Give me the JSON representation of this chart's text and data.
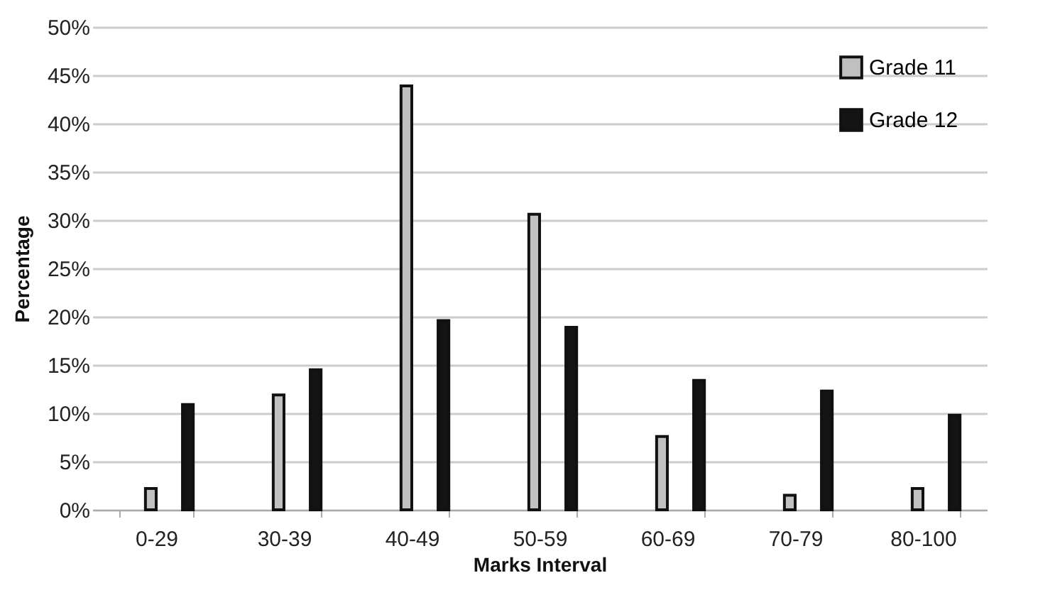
{
  "chart_data": {
    "type": "bar",
    "xlabel": "Marks Interval",
    "ylabel": "Percentage",
    "categories": [
      "0-29",
      "30-39",
      "40-49",
      "50-59",
      "60-69",
      "70-79",
      "80-100"
    ],
    "series": [
      {
        "name": "Grade 11",
        "color": "#c0c0c0",
        "values": [
          2.2,
          11.9,
          43.9,
          30.6,
          7.6,
          1.5,
          2.2
        ]
      },
      {
        "name": "Grade 12",
        "color": "#141414",
        "values": [
          10.9,
          14.5,
          19.6,
          18.9,
          13.4,
          12.3,
          9.8
        ]
      }
    ],
    "ylim": [
      0,
      50
    ],
    "yticks": [
      {
        "value": 0,
        "label": "0%"
      },
      {
        "value": 5,
        "label": "5%"
      },
      {
        "value": 10,
        "label": "10%"
      },
      {
        "value": 15,
        "label": "15%"
      },
      {
        "value": 20,
        "label": "20%"
      },
      {
        "value": 25,
        "label": "25%"
      },
      {
        "value": 30,
        "label": "30%"
      },
      {
        "value": 35,
        "label": "35%"
      },
      {
        "value": 40,
        "label": "40%"
      },
      {
        "value": 45,
        "label": "45%"
      },
      {
        "value": 50,
        "label": "50%"
      }
    ],
    "grid": "y",
    "legend": "top right"
  }
}
